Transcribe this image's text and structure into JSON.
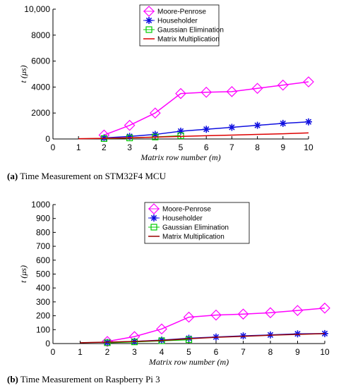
{
  "chart_data": [
    {
      "type": "line",
      "caption_label": "(a)",
      "caption_text": "Time Measurement on STM32F4 MCU",
      "xlabel": "Matrix row number (m)",
      "ylabel": "t (μs)",
      "xlim": [
        0,
        10
      ],
      "ylim": [
        0,
        10000
      ],
      "xticks": [
        "0",
        "1",
        "2",
        "3",
        "4",
        "5",
        "6",
        "7",
        "8",
        "9",
        "10"
      ],
      "yticks": [
        "0",
        "2000",
        "4000",
        "6000",
        "8000",
        "10,000"
      ],
      "ytick_values": [
        0,
        2000,
        4000,
        6000,
        8000,
        10000
      ],
      "grid": false,
      "legend_position": "top-center",
      "series": [
        {
          "name": "Moore-Penrose",
          "color": "#ff00ff",
          "marker": "diamond",
          "x": [
            2,
            3,
            4,
            5,
            6,
            7,
            8,
            9,
            10
          ],
          "y": [
            300,
            1050,
            2000,
            3500,
            3600,
            3650,
            3900,
            4150,
            4400
          ]
        },
        {
          "name": "Householder",
          "color": "#1010e0",
          "marker": "star",
          "x": [
            2,
            3,
            4,
            5,
            6,
            7,
            8,
            9,
            10
          ],
          "y": [
            80,
            200,
            350,
            600,
            750,
            900,
            1050,
            1200,
            1320
          ]
        },
        {
          "name": "Gaussian Elimination",
          "color": "#00cc00",
          "marker": "square",
          "x": [
            2,
            3,
            4,
            5
          ],
          "y": [
            30,
            80,
            150,
            250
          ]
        },
        {
          "name": "Matrix Multiplication",
          "color": "#dd0000",
          "marker": "none",
          "x": [
            1,
            2,
            3,
            4,
            5,
            6,
            7,
            8,
            9,
            10
          ],
          "y": [
            20,
            50,
            90,
            140,
            200,
            250,
            300,
            350,
            400,
            470
          ]
        }
      ]
    },
    {
      "type": "line",
      "caption_label": "(b)",
      "caption_text": "Time Measurement on Raspberry Pi 3",
      "xlabel": "Matrix row number (m)",
      "ylabel": "t (μs)",
      "xlim": [
        0,
        10
      ],
      "ylim": [
        0,
        1000
      ],
      "xticks": [
        "0",
        "1",
        "2",
        "3",
        "4",
        "5",
        "6",
        "7",
        "8",
        "9",
        "10"
      ],
      "yticks": [
        "0",
        "100",
        "200",
        "300",
        "400",
        "500",
        "600",
        "700",
        "800",
        "900",
        "1000"
      ],
      "ytick_values": [
        0,
        100,
        200,
        300,
        400,
        500,
        600,
        700,
        800,
        900,
        1000
      ],
      "grid": false,
      "legend_position": "top-center",
      "series": [
        {
          "name": "Moore-Penrose",
          "color": "#ff00ff",
          "marker": "diamond",
          "x": [
            2,
            3,
            4,
            5,
            6,
            7,
            8,
            9,
            10
          ],
          "y": [
            15,
            50,
            105,
            190,
            205,
            212,
            222,
            238,
            255
          ]
        },
        {
          "name": "Householder",
          "color": "#1010e0",
          "marker": "star",
          "x": [
            2,
            3,
            4,
            5,
            6,
            7,
            8,
            9,
            10
          ],
          "y": [
            8,
            15,
            25,
            38,
            47,
            55,
            62,
            70,
            72
          ]
        },
        {
          "name": "Gaussian Elimination",
          "color": "#00cc00",
          "marker": "square",
          "x": [
            2,
            3,
            4,
            5
          ],
          "y": [
            6,
            12,
            20,
            28
          ]
        },
        {
          "name": "Matrix Multiplication",
          "color": "#990000",
          "marker": "none",
          "x": [
            1,
            2,
            3,
            4,
            5,
            6,
            7,
            8,
            9,
            10
          ],
          "y": [
            6,
            10,
            15,
            22,
            35,
            45,
            52,
            60,
            66,
            72
          ]
        }
      ]
    }
  ]
}
